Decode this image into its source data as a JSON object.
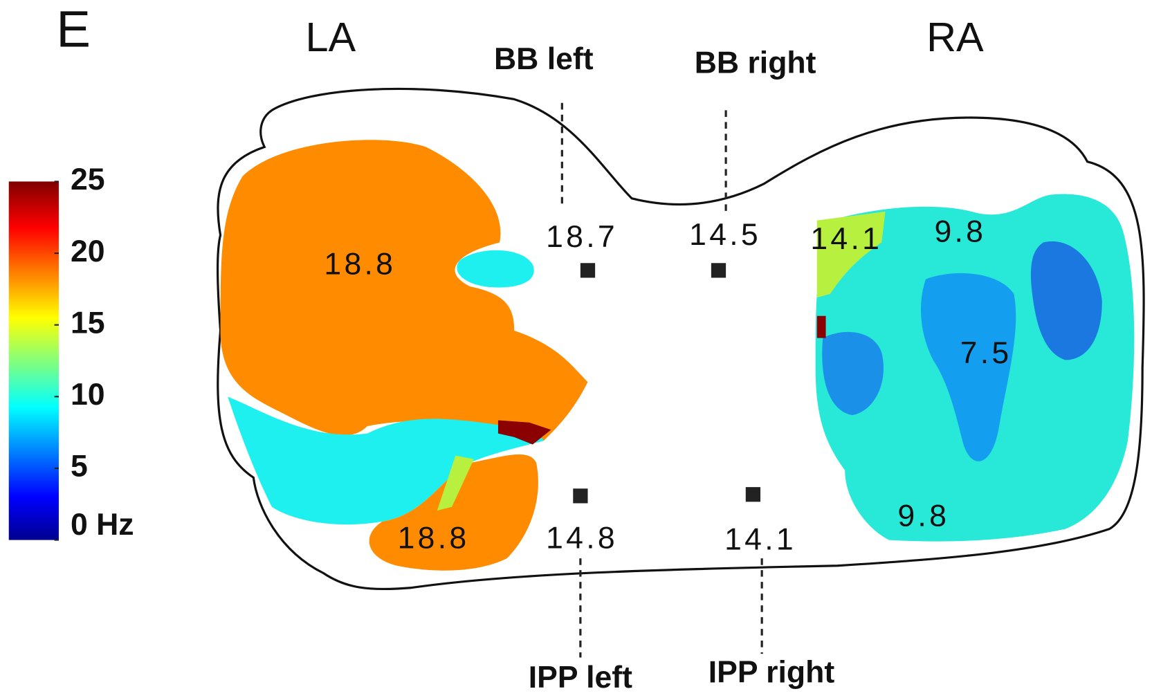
{
  "panel_label": "E",
  "chamber_labels": {
    "left": "LA",
    "right": "RA"
  },
  "site_labels": {
    "bb_left": "BB left",
    "bb_right": "BB right",
    "ipp_left": "IPP left",
    "ipp_right": "IPP right"
  },
  "frequency_labels": {
    "la_upper": "18.8",
    "la_lower": "18.8",
    "bb_left": "18.7",
    "bb_right": "14.5",
    "ra_septal": "14.1",
    "ra_top": "9.8",
    "ra_center": "7.5",
    "ra_bottom": "9.8",
    "ipp_left": "14.8",
    "ipp_right": "14.1"
  },
  "colorbar": {
    "range": [
      0,
      25
    ],
    "ticks": [
      25,
      20,
      15,
      10,
      5,
      {
        "value": 0,
        "label": "0 Hz"
      }
    ]
  }
}
